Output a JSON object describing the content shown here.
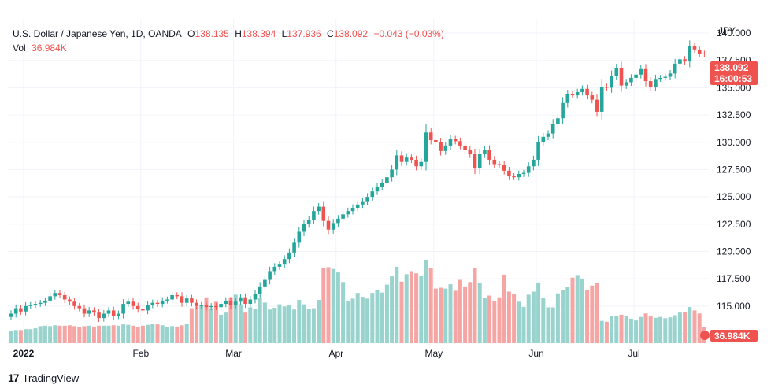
{
  "legend": {
    "symbol": "U.S. Dollar / Japanese Yen, 1D, OANDA",
    "o_label": "O",
    "o_value": "138.135",
    "h_label": "H",
    "h_value": "138.394",
    "l_label": "L",
    "l_value": "137.936",
    "c_label": "C",
    "c_value": "138.092",
    "change": "−0.043 (−0.03%)",
    "vol_label": "Vol",
    "vol_value": "36.984K"
  },
  "price_axis": {
    "currency": "JPY",
    "last_price": "138.092",
    "countdown": "16:00:53",
    "volume_tag": "36.984K"
  },
  "footer": {
    "brand": "TradingView"
  },
  "colors": {
    "up": "#26a69a",
    "down": "#ef5350",
    "up_vol": "#98d3ce",
    "down_vol": "#f5a6a4",
    "grid": "#f0f3fa"
  },
  "chart_data": {
    "type": "candlestick",
    "y_ticks": [
      "140.000",
      "137.500",
      "135.000",
      "132.500",
      "130.000",
      "127.500",
      "125.000",
      "122.500",
      "120.000",
      "117.500",
      "115.000",
      "112.500"
    ],
    "ylim": [
      111.6,
      141.3
    ],
    "x_ticks": [
      "2022",
      "Feb",
      "Mar",
      "Apr",
      "May",
      "Jun",
      "Jul"
    ],
    "last_close": 138.092,
    "closes": [
      114.3,
      114.8,
      114.5,
      115.0,
      115.1,
      115.2,
      115.3,
      115.5,
      115.9,
      116.2,
      116.0,
      115.6,
      115.4,
      115.0,
      114.8,
      114.3,
      114.6,
      114.4,
      113.9,
      114.3,
      114.6,
      114.1,
      114.3,
      115.2,
      115.4,
      115.0,
      114.7,
      114.6,
      115.1,
      115.3,
      115.2,
      115.5,
      115.6,
      116.0,
      115.9,
      115.3,
      115.7,
      115.3,
      115.0,
      115.1,
      114.9,
      115.0,
      114.9,
      115.2,
      115.5,
      115.1,
      115.4,
      115.8,
      115.2,
      115.6,
      116.1,
      116.8,
      117.4,
      118.2,
      118.6,
      118.8,
      119.3,
      119.9,
      120.8,
      121.8,
      122.5,
      122.9,
      123.7,
      124.1,
      122.8,
      122.0,
      122.6,
      123.0,
      123.4,
      123.7,
      124.0,
      124.3,
      124.6,
      125.0,
      125.5,
      125.9,
      126.3,
      126.8,
      127.5,
      128.8,
      128.2,
      128.6,
      128.4,
      127.8,
      128.2,
      130.9,
      130.2,
      130.0,
      129.2,
      129.7,
      130.3,
      130.1,
      129.7,
      129.3,
      128.9,
      127.6,
      128.9,
      129.3,
      128.4,
      128.0,
      127.9,
      127.4,
      126.9,
      126.8,
      127.1,
      127.2,
      127.8,
      128.4,
      130.0,
      130.5,
      130.8,
      131.7,
      132.2,
      133.6,
      134.4,
      134.3,
      134.6,
      134.9,
      134.3,
      133.9,
      132.8,
      135.1,
      135.0,
      136.1,
      136.8,
      135.2,
      135.5,
      135.9,
      136.2,
      136.7,
      135.6,
      135.1,
      135.8,
      135.9,
      136.0,
      136.3,
      137.2,
      137.6,
      137.4,
      138.8,
      138.5,
      138.1,
      138.092
    ],
    "volumes": [
      2.9,
      3.0,
      3.0,
      3.2,
      3.2,
      3.4,
      3.9,
      4.0,
      3.9,
      4.1,
      4.0,
      4.0,
      4.1,
      3.9,
      3.7,
      3.9,
      4.0,
      3.8,
      4.0,
      4.0,
      4.0,
      4.1,
      4.0,
      4.3,
      4.2,
      4.0,
      3.7,
      4.0,
      4.2,
      4.4,
      4.3,
      4.1,
      3.7,
      3.9,
      3.8,
      4.1,
      4.4,
      8.0,
      8.4,
      8.6,
      10.5,
      8.0,
      9.5,
      6.5,
      7.0,
      10.5,
      11.1,
      8.9,
      7.0,
      8.2,
      7.8,
      10.3,
      9.3,
      7.7,
      8.1,
      8.9,
      8.4,
      8.7,
      7.7,
      9.9,
      8.9,
      7.8,
      8.0,
      9.9,
      17.3,
      17.4,
      17.0,
      16.2,
      14.0,
      9.7,
      10.2,
      11.5,
      10.6,
      10.2,
      11.5,
      12.1,
      11.6,
      13.4,
      15.3,
      17.5,
      14.1,
      15.8,
      16.5,
      16.0,
      15.4,
      19.1,
      17.2,
      12.5,
      12.7,
      12.5,
      13.5,
      12.0,
      14.5,
      13.0,
      14.0,
      17.2,
      13.8,
      10.4,
      10.9,
      9.7,
      10.5,
      15.7,
      11.8,
      11.3,
      9.5,
      8.3,
      11.1,
      11.8,
      13.9,
      10.3,
      8.2,
      8.2,
      11.4,
      12.2,
      12.9,
      15.0,
      15.6,
      14.8,
      12.2,
      13.2,
      13.7,
      5.1,
      4.9,
      6.2,
      6.3,
      6.5,
      6.2,
      5.6,
      5.2,
      6.0,
      6.8,
      6.2,
      5.8,
      6.0,
      5.7,
      5.9,
      6.4,
      7.0,
      7.2,
      8.3,
      7.5,
      6.8,
      3.7
    ]
  }
}
